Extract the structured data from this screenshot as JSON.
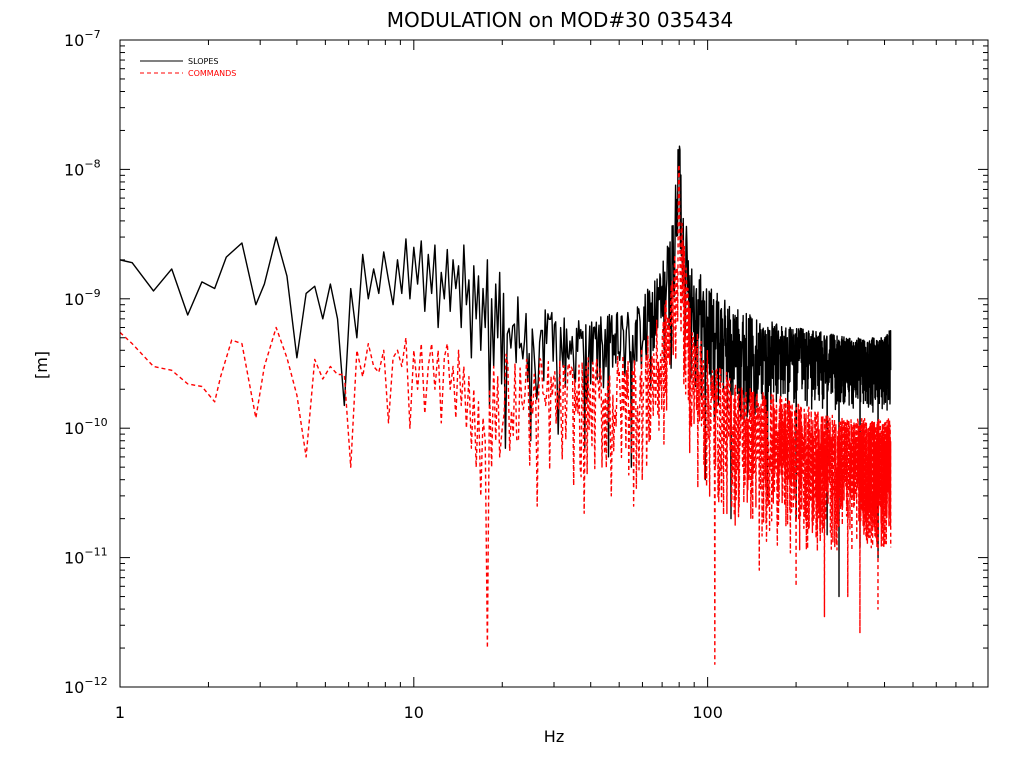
{
  "chart_data": {
    "type": "line",
    "title": "MODULATION on MOD#30 035434",
    "xlabel": "Hz",
    "ylabel": "[m]",
    "xscale": "log",
    "yscale": "log",
    "xlim": [
      1,
      900
    ],
    "ylim": [
      1e-12,
      1e-07
    ],
    "x_ticks": [
      {
        "value": 1,
        "label": "1"
      },
      {
        "value": 10,
        "label": "10"
      },
      {
        "value": 100,
        "label": "100"
      }
    ],
    "y_ticks": [
      {
        "value": 1e-12,
        "base": "10",
        "exp": "−12"
      },
      {
        "value": 1e-11,
        "base": "10",
        "exp": "−11"
      },
      {
        "value": 1e-10,
        "base": "10",
        "exp": "−10"
      },
      {
        "value": 1e-09,
        "base": "10",
        "exp": "−9"
      },
      {
        "value": 1e-08,
        "base": "10",
        "exp": "−8"
      },
      {
        "value": 1e-07,
        "base": "10",
        "exp": "−7"
      }
    ],
    "legend_position": "top-left",
    "freq_step_hz": 0.3,
    "series": [
      {
        "name": "SLOPES",
        "color": "#000000",
        "style": "solid",
        "x": [
          1.0,
          1.1,
          1.3,
          1.5,
          1.7,
          1.9,
          2.1,
          2.3,
          2.6,
          2.9,
          3.1,
          3.4,
          3.7,
          4.0,
          4.3,
          4.6,
          4.9,
          5.2,
          5.5,
          5.8,
          6.1,
          6.4,
          6.7,
          7.0,
          7.3,
          7.6,
          7.9,
          8.2,
          8.5,
          8.8,
          9.1,
          9.4,
          9.7,
          10.0,
          10.3,
          10.6,
          10.9,
          11.2,
          11.5,
          11.8,
          12.1,
          12.4,
          12.7,
          13.0,
          13.3,
          13.6,
          13.9,
          14.2,
          14.5,
          14.8,
          15.1,
          15.4,
          15.7,
          16.0,
          16.3,
          16.6,
          16.9,
          17.2,
          17.5,
          17.8,
          18.1,
          18.4,
          18.7,
          19.0,
          19.3,
          19.6,
          19.9
        ],
        "values": [
          2e-09,
          1.9e-09,
          1.15e-09,
          1.7e-09,
          7.5e-10,
          1.35e-09,
          1.2e-09,
          2.1e-09,
          2.7e-09,
          9e-10,
          1.3e-09,
          3e-09,
          1.5e-09,
          3.5e-10,
          1.1e-09,
          1.25e-09,
          7e-10,
          1.3e-09,
          7e-10,
          1.5e-10,
          1.2e-09,
          5e-10,
          2.2e-09,
          1e-09,
          1.7e-09,
          1.1e-09,
          2.3e-09,
          1.4e-09,
          9e-10,
          2e-09,
          1.1e-09,
          2.9e-09,
          1e-09,
          2.5e-09,
          1.3e-09,
          2.8e-09,
          8e-10,
          2.2e-09,
          1.1e-09,
          2.6e-09,
          6e-10,
          1.6e-09,
          1e-09,
          2.4e-09,
          8e-10,
          2e-09,
          1.2e-09,
          1.8e-09,
          6e-10,
          2.6e-09,
          9e-10,
          1.4e-09,
          3.5e-10,
          1.8e-09,
          7e-10,
          1.5e-09,
          4e-10,
          1.2e-09,
          6e-10,
          2e-09,
          1.5e-10,
          1e-09,
          3e-10,
          1.3e-09,
          5e-10,
          1.6e-09,
          2.2e-10
        ],
        "envelope_x": [
          20,
          30,
          40,
          50,
          60,
          70,
          75,
          78,
          80,
          82,
          85,
          90,
          100,
          120,
          150,
          200,
          250,
          300,
          350,
          400,
          420
        ],
        "envelope_high": [
          1.2e-09,
          8e-10,
          7e-10,
          8e-10,
          1e-09,
          2e-09,
          3.5e-09,
          8e-09,
          2.6e-08,
          8e-09,
          3.5e-09,
          2e-09,
          1.3e-09,
          9e-10,
          7e-10,
          6e-10,
          5.5e-10,
          5e-10,
          5e-10,
          5e-10,
          6e-10
        ],
        "envelope_low": [
          1e-10,
          1.2e-10,
          1.5e-10,
          1.5e-10,
          1.5e-10,
          1.8e-10,
          2.5e-10,
          5e-10,
          1.5e-09,
          5e-10,
          2.5e-10,
          1.5e-10,
          1.1e-10,
          1e-10,
          1.1e-10,
          1.2e-10,
          1.3e-10,
          1.3e-10,
          1.3e-10,
          1.3e-10,
          1.3e-10
        ],
        "dips": [
          {
            "x": 20.5,
            "value": 7e-11
          },
          {
            "x": 25.0,
            "value": 8e-11
          },
          {
            "x": 31.0,
            "value": 9e-11
          },
          {
            "x": 38.0,
            "value": 7e-11
          },
          {
            "x": 46.0,
            "value": 6e-11
          },
          {
            "x": 55.0,
            "value": 5e-11
          },
          {
            "x": 98.0,
            "value": 4e-11
          },
          {
            "x": 120.0,
            "value": 2e-11
          },
          {
            "x": 160.0,
            "value": 3e-11
          },
          {
            "x": 200.0,
            "value": 2e-11
          },
          {
            "x": 255.0,
            "value": 1.5e-11
          },
          {
            "x": 280.0,
            "value": 5e-12
          },
          {
            "x": 330.0,
            "value": 1.2e-11
          },
          {
            "x": 380.0,
            "value": 1e-11
          }
        ]
      },
      {
        "name": "COMMANDS",
        "color": "#ff0000",
        "style": "dashed",
        "x": [
          1.0,
          1.1,
          1.3,
          1.5,
          1.7,
          1.9,
          2.1,
          2.2,
          2.4,
          2.6,
          2.9,
          3.1,
          3.4,
          3.7,
          4.0,
          4.3,
          4.6,
          4.9,
          5.2,
          5.5,
          5.8,
          6.1,
          6.4,
          6.7,
          7.0,
          7.3,
          7.6,
          7.9,
          8.2,
          8.5,
          8.8,
          9.1,
          9.4,
          9.7,
          10.0,
          10.3,
          10.6,
          10.9,
          11.2,
          11.5,
          11.8,
          12.1,
          12.4,
          12.7,
          13.0,
          13.3,
          13.6,
          13.9,
          14.2,
          14.5,
          14.8,
          15.1,
          15.4,
          15.7,
          16.0,
          16.3,
          16.6,
          16.9,
          17.2,
          17.5,
          17.8,
          18.1,
          18.4,
          18.7,
          19.0,
          19.3,
          19.6
        ],
        "values": [
          5.5e-10,
          4.5e-10,
          3e-10,
          2.8e-10,
          2.2e-10,
          2.1e-10,
          1.6e-10,
          2.5e-10,
          4.8e-10,
          4.5e-10,
          1.2e-10,
          3e-10,
          6e-10,
          3.5e-10,
          1.8e-10,
          6e-11,
          3.4e-10,
          2.4e-10,
          3e-10,
          2.6e-10,
          2.6e-10,
          5e-11,
          4e-10,
          2.5e-10,
          4.5e-10,
          3e-10,
          2.7e-10,
          4e-10,
          1.1e-10,
          3.5e-10,
          4e-10,
          3e-10,
          5e-10,
          1e-10,
          4e-10,
          2e-10,
          4.5e-10,
          1.3e-10,
          3e-10,
          4.5e-10,
          2e-10,
          4e-10,
          1.1e-10,
          3.5e-10,
          4.5e-10,
          2e-10,
          3e-10,
          1.2e-10,
          4e-10,
          1.5e-10,
          3e-10,
          1e-10,
          2.5e-10,
          7e-11,
          2e-10,
          5e-11,
          1.6e-10,
          3e-11,
          1.2e-10,
          8e-11,
          2e-12,
          2e-10,
          5e-11,
          3e-10,
          8e-11,
          2.5e-10,
          6e-11
        ],
        "envelope_x": [
          20,
          30,
          40,
          50,
          60,
          70,
          75,
          78,
          80,
          82,
          85,
          90,
          100,
          120,
          150,
          200,
          250,
          300,
          350,
          400,
          420
        ],
        "envelope_high": [
          4e-10,
          3.5e-10,
          3.5e-10,
          3.8e-10,
          4.5e-10,
          8e-10,
          1.5e-09,
          4e-09,
          1.3e-08,
          4e-09,
          1.5e-09,
          7e-10,
          4e-10,
          2.5e-10,
          2e-10,
          1.6e-10,
          1.3e-10,
          1.2e-10,
          1.2e-10,
          1.2e-10,
          1.2e-10
        ],
        "envelope_low": [
          3e-11,
          3e-11,
          3e-11,
          3e-11,
          3e-11,
          4e-11,
          8e-11,
          2e-10,
          8e-10,
          2e-10,
          8e-11,
          3e-11,
          2e-11,
          1.5e-11,
          1.2e-11,
          1e-11,
          1e-11,
          1e-11,
          1e-11,
          1e-11,
          1e-11
        ],
        "dips": [
          {
            "x": 26.5,
            "value": 2.5e-11
          },
          {
            "x": 38.0,
            "value": 2.2e-11
          },
          {
            "x": 47.0,
            "value": 3e-11
          },
          {
            "x": 56.0,
            "value": 2.5e-11
          },
          {
            "x": 62.0,
            "value": 5e-11
          },
          {
            "x": 106.0,
            "value": 1.5e-12
          },
          {
            "x": 150.0,
            "value": 8e-12
          },
          {
            "x": 200.0,
            "value": 6e-12
          },
          {
            "x": 250.0,
            "value": 3.5e-12
          },
          {
            "x": 300.0,
            "value": 5e-12
          },
          {
            "x": 330.0,
            "value": 2.6e-12
          },
          {
            "x": 380.0,
            "value": 4e-12
          },
          {
            "x": 420.0,
            "value": 1.2e-11
          }
        ]
      }
    ]
  }
}
